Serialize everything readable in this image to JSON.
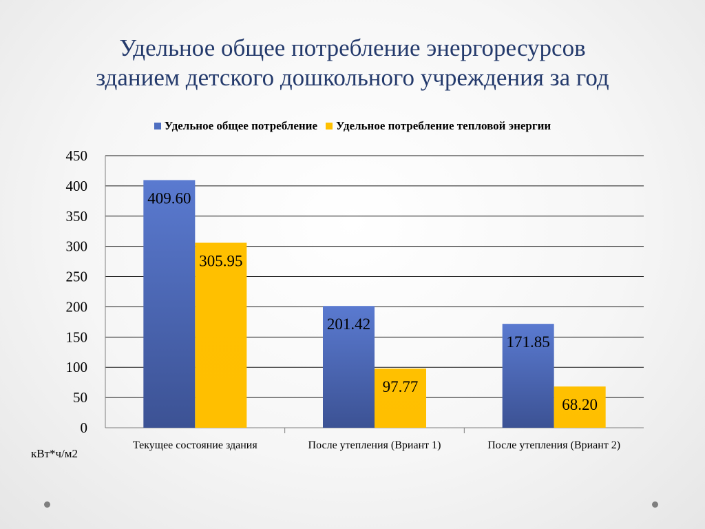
{
  "title": {
    "line1": "Удельное общее потребление энергоресурсов",
    "line2": "зданием детского дошкольного учреждения за год"
  },
  "colors": {
    "series1": "#4f6fc1",
    "series2": "#ffc000",
    "title": "#243a6c"
  },
  "chart_data": {
    "type": "bar",
    "categories": [
      "Текущее состояние здания",
      "После утепления (Вриант 1)",
      "После утепления (Вриант 2)"
    ],
    "series": [
      {
        "name": "Удельное общее потребление",
        "values": [
          409.6,
          201.42,
          171.85
        ],
        "labels": [
          "409.60",
          "201.42",
          "171.85"
        ]
      },
      {
        "name": "Удельное потребление тепловой энергии",
        "values": [
          305.95,
          97.77,
          68.2
        ],
        "labels": [
          "305.95",
          "97.77",
          "68.20"
        ]
      }
    ],
    "ylim": [
      0,
      450
    ],
    "yticks": [
      "0",
      "50",
      "100",
      "150",
      "200",
      "250",
      "300",
      "350",
      "400",
      "450"
    ],
    "ylabel": "кВт*ч/м2",
    "xlabel": "",
    "grid": true,
    "legend": "top"
  }
}
